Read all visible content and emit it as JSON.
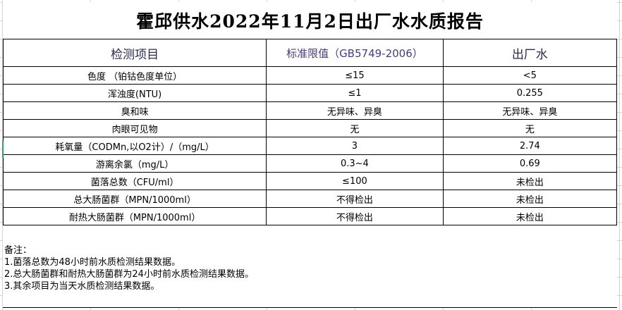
{
  "title": "霍邱供水2022年11月2日出厂水水质报告",
  "columns": [
    "检测项目",
    "标准限值（GB5749-2006）",
    "出厂水"
  ],
  "rows": [
    [
      "色度 （铂钴色度单位）",
      "≤15",
      "<5"
    ],
    [
      "浑浊度(NTU)",
      "≤1",
      "0.255"
    ],
    [
      "臭和味",
      "无异味、异臭",
      "无异味、异臭"
    ],
    [
      "肉眼可见物",
      "无",
      "无"
    ],
    [
      "耗氧量（CODMn,以O2计）/（mg/L）",
      "3",
      "2.74"
    ],
    [
      "游离余氯（mg/L）",
      "0.3~4",
      "0.69"
    ],
    [
      "菌落总数（CFU/ml）",
      "≤100",
      "未检出"
    ],
    [
      "总大肠菌群（MPN/1000ml）",
      "不得检出",
      "未检出"
    ],
    [
      "耐热大肠菌群（MPN/1000ml）",
      "不得检出",
      "未检出"
    ]
  ],
  "notes": [
    "备注：",
    "1.菌落总数为48小时前水质检测结果数据。",
    "2.总大肠菌群和耐热大肠菌群为24小时前水质检测结果数据。",
    "3.其余项目为当天水质检测结果数据。"
  ]
}
